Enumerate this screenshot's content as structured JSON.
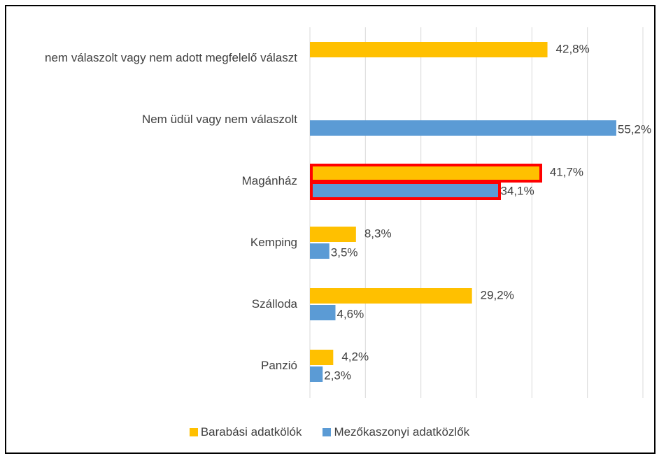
{
  "chart_data": {
    "type": "hbar",
    "categories": [
      "nem válaszolt vagy nem adott megfelelő választ",
      "Nem üdül vagy nem válaszolt",
      "Magánház",
      "Kemping",
      "Szálloda",
      "Panzió"
    ],
    "series": [
      {
        "name": "Barabási adatkölók",
        "color": "#FFC000",
        "values": [
          42.8,
          null,
          41.7,
          8.3,
          29.2,
          4.2
        ],
        "value_labels": [
          "42,8%",
          null,
          "41,7%",
          "8,3%",
          "29,2%",
          "4,2%"
        ]
      },
      {
        "name": "Mezőkaszonyi adatközlők",
        "color": "#5B9BD5",
        "values": [
          null,
          55.2,
          34.1,
          3.5,
          4.6,
          2.3
        ],
        "value_labels": [
          null,
          "55,2%",
          "34,1%",
          "3,5%",
          "4,6%",
          "2,3%"
        ]
      }
    ],
    "xlim": [
      0,
      60
    ],
    "xticks": [
      0,
      10,
      20,
      30,
      40,
      50,
      60
    ],
    "grid": true,
    "legend": "bottom"
  }
}
